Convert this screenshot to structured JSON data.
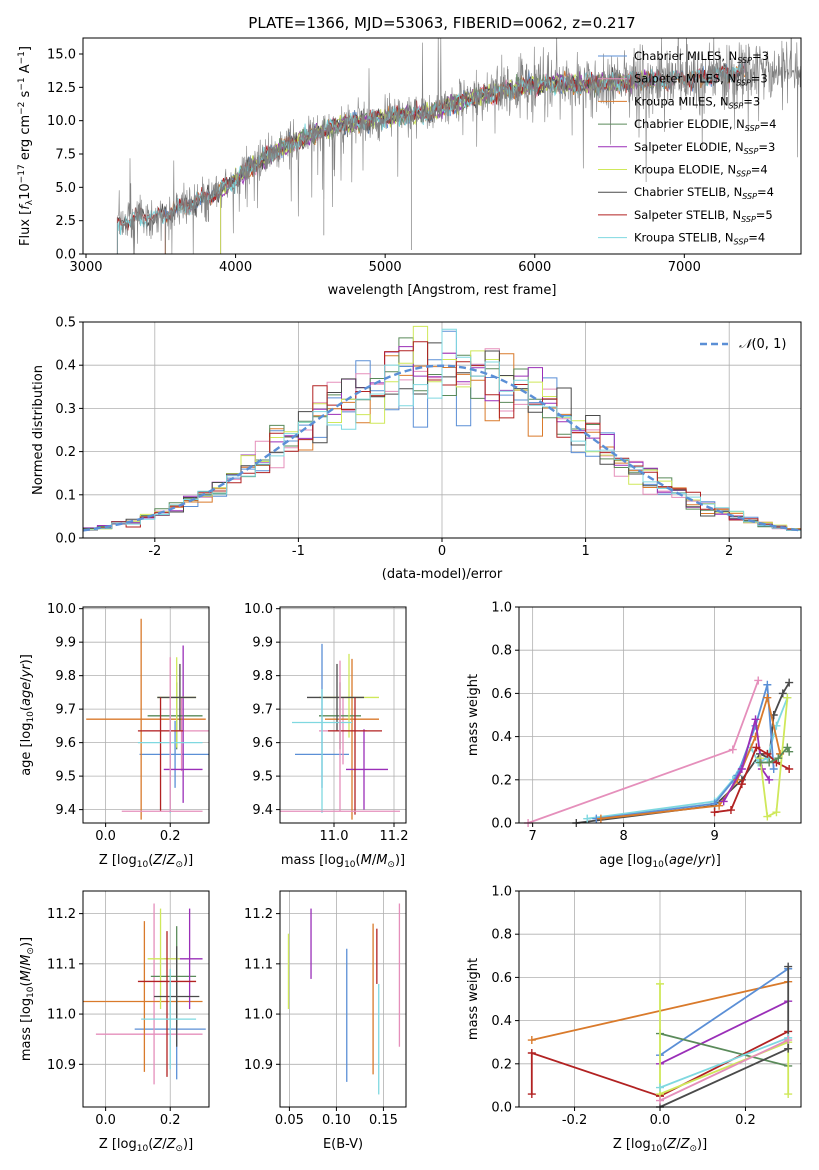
{
  "page_title": "PLATE=1366, MJD=53063, FIBERID=0062, z=0.217",
  "colors": {
    "grid": "#b0b0b0",
    "chabrier_miles": "#5b8fd6",
    "salpeter_miles": "#e58fbb",
    "kroupa_miles": "#d97a2b",
    "chabrier_elodie": "#5a8a5a",
    "salpeter_elodie": "#9a2fb8",
    "kroupa_elodie": "#cfe85a",
    "chabrier_stelib": "#4a4a4a",
    "salpeter_stelib": "#b22222",
    "kroupa_stelib": "#7fd8e0",
    "normal": "#5b8fd6",
    "spectrum_grey": "#808080"
  },
  "chart_data": [
    {
      "id": "spectrum",
      "type": "line",
      "title": "PLATE=1366, MJD=53063, FIBERID=0062, z=0.217",
      "xlabel": "wavelength [Angstrom, rest frame]",
      "ylabel": "Flux [f_λ 10^-17 erg cm^-2 s^-1 A^-1]",
      "xlim": [
        2980,
        7780
      ],
      "ylim": [
        0,
        16.2
      ],
      "xticks": [
        3000,
        4000,
        5000,
        6000,
        7000
      ],
      "yticks": [
        0.0,
        2.5,
        5.0,
        7.5,
        10.0,
        12.5,
        15.0
      ],
      "continuum": {
        "x": [
          3210,
          3300,
          3500,
          3700,
          3900,
          4100,
          4300,
          4500,
          4700,
          4900,
          5100,
          5300,
          5500,
          5700,
          5900,
          6100,
          6300,
          6500,
          6700,
          6900,
          7100,
          7300,
          7400
        ],
        "y": [
          2.3,
          2.6,
          2.9,
          3.8,
          4.7,
          6.5,
          7.9,
          8.9,
          9.7,
          10.0,
          10.4,
          10.6,
          11.4,
          12.0,
          12.5,
          12.8,
          12.7,
          12.9,
          13.0,
          13.1,
          13.2,
          13.6,
          13.6
        ]
      },
      "series_ranges": [
        {
          "name": "Chabrier MILES, N_SSP=3",
          "x0": 3530,
          "x1": 7410
        },
        {
          "name": "Salpeter MILES, N_SSP=3",
          "x0": 3530,
          "x1": 7410
        },
        {
          "name": "Kroupa MILES, N_SSP=3",
          "x0": 3530,
          "x1": 7410
        },
        {
          "name": "Chabrier ELODIE, N_SSP=4",
          "x0": 3900,
          "x1": 6800
        },
        {
          "name": "Salpeter ELODIE, N_SSP=3",
          "x0": 3900,
          "x1": 6800
        },
        {
          "name": "Kroupa ELODIE, N_SSP=4",
          "x0": 3900,
          "x1": 6800
        },
        {
          "name": "Chabrier STELIB, N_SSP=4",
          "x0": 3210,
          "x1": 7400
        },
        {
          "name": "Salpeter STELIB, N_SSP=5",
          "x0": 3210,
          "x1": 7400
        },
        {
          "name": "Kroupa STELIB, N_SSP=4",
          "x0": 3210,
          "x1": 7400
        }
      ],
      "legend_position": "upper right"
    },
    {
      "id": "residuals",
      "type": "histogram",
      "xlabel": "(data-model)/error",
      "ylabel": "Normed distribution",
      "xlim": [
        -2.5,
        2.5
      ],
      "ylim": [
        0.0,
        0.5
      ],
      "xticks": [
        -2,
        -1,
        0,
        1,
        2
      ],
      "yticks": [
        0.0,
        0.1,
        0.2,
        0.3,
        0.4,
        0.5
      ],
      "bin_width": 0.1,
      "legend": "N(0, 1)",
      "legend_position": "upper right"
    },
    {
      "id": "age_vs_Z",
      "type": "errorbar",
      "xlabel": "Z [log10(Z/Z☉)]",
      "ylabel": "age  [log10(age/yr)]",
      "xlim": [
        -0.07,
        0.32
      ],
      "ylim": [
        9.36,
        10.005
      ],
      "xticks": [
        0.0,
        0.2
      ],
      "yticks": [
        9.4,
        9.5,
        9.6,
        9.7,
        9.8,
        9.9,
        10.0
      ],
      "points": [
        {
          "series": "chabrier_miles",
          "x": 0.215,
          "y": 9.565,
          "xerr": [
            0.11,
            0.11
          ],
          "yerr": [
            0.1,
            0.1
          ]
        },
        {
          "series": "salpeter_miles",
          "x": 0.235,
          "y": 9.635,
          "xerr": [
            0.12,
            0.12
          ],
          "yerr": [
            0.12,
            0.1
          ]
        },
        {
          "series": "kroupa_miles",
          "x": 0.11,
          "y": 9.67,
          "xerr": [
            0.17,
            0.2
          ],
          "yerr": [
            0.3,
            0.3
          ]
        },
        {
          "series": "chabrier_elodie",
          "x": 0.22,
          "y": 9.68,
          "xerr": [
            0.09,
            0.08
          ],
          "yerr": [
            0.1,
            0.1
          ]
        },
        {
          "series": "salpeter_elodie",
          "x": 0.24,
          "y": 9.52,
          "xerr": [
            0.06,
            0.06
          ],
          "yerr": [
            0.1,
            0.37
          ]
        },
        {
          "series": "kroupa_elodie",
          "x": 0.22,
          "y": 9.735,
          "xerr": [
            0.06,
            0.06
          ],
          "yerr": [
            0.15,
            0.12
          ]
        },
        {
          "series": "chabrier_stelib",
          "x": 0.23,
          "y": 9.735,
          "xerr": [
            0.07,
            0.05
          ],
          "yerr": [
            0.1,
            0.1
          ]
        },
        {
          "series": "salpeter_stelib",
          "x": 0.17,
          "y": 9.635,
          "xerr": [
            0.07,
            0.07
          ],
          "yerr": [
            0.24,
            0.1
          ]
        },
        {
          "series": "kroupa_stelib",
          "x": 0.2,
          "y": 9.6,
          "xerr": [
            0.1,
            0.1
          ],
          "yerr": [
            0.21,
            0.1
          ]
        },
        {
          "series": "salpeter_miles",
          "x": 0.2,
          "y": 9.395,
          "xerr": [
            0.15,
            0.1
          ],
          "yerr": [
            0.0,
            0.46
          ]
        }
      ]
    },
    {
      "id": "age_vs_mass",
      "type": "errorbar",
      "xlabel": "mass [log10(M/M☉)]",
      "ylabel": "",
      "xlim": [
        10.82,
        11.24
      ],
      "ylim": [
        9.36,
        10.005
      ],
      "xticks": [
        11.0,
        11.2
      ],
      "xtick_labels": [
        "11.0",
        "11.2"
      ],
      "extra_xtick": "10.8",
      "yticks": [
        9.4,
        9.5,
        9.6,
        9.7,
        9.8,
        9.9,
        10.0
      ],
      "points": [
        {
          "series": "chabrier_miles",
          "x": 10.96,
          "y": 9.565,
          "xerr": [
            0.09,
            0.09
          ],
          "yerr": [
            0.1,
            0.33
          ]
        },
        {
          "series": "salpeter_miles",
          "x": 11.03,
          "y": 9.635,
          "xerr": [
            0.08,
            0.08
          ],
          "yerr": [
            0.1,
            0.1
          ]
        },
        {
          "series": "kroupa_miles",
          "x": 11.06,
          "y": 9.67,
          "xerr": [
            0.09,
            0.09
          ],
          "yerr": [
            0.3,
            0.18
          ]
        },
        {
          "series": "chabrier_elodie",
          "x": 11.02,
          "y": 9.68,
          "xerr": [
            0.07,
            0.07
          ],
          "yerr": [
            0.1,
            0.1
          ]
        },
        {
          "series": "salpeter_elodie",
          "x": 11.1,
          "y": 9.52,
          "xerr": [
            0.06,
            0.08
          ],
          "yerr": [
            0.12,
            0.12
          ]
        },
        {
          "series": "kroupa_elodie",
          "x": 11.05,
          "y": 9.735,
          "xerr": [
            0.1,
            0.1
          ],
          "yerr": [
            0.12,
            0.13
          ]
        },
        {
          "series": "chabrier_stelib",
          "x": 11.01,
          "y": 9.735,
          "xerr": [
            0.1,
            0.09
          ],
          "yerr": [
            0.1,
            0.1
          ]
        },
        {
          "series": "salpeter_stelib",
          "x": 11.07,
          "y": 9.635,
          "xerr": [
            0.09,
            0.09
          ],
          "yerr": [
            0.25,
            0.1
          ]
        },
        {
          "series": "kroupa_stelib",
          "x": 10.96,
          "y": 9.66,
          "xerr": [
            0.1,
            0.1
          ],
          "yerr": [
            0.27,
            0.1
          ]
        },
        {
          "series": "salpeter_miles",
          "x": 11.02,
          "y": 9.395,
          "xerr": [
            0.2,
            0.2
          ],
          "yerr": [
            0.0,
            0.45
          ]
        }
      ]
    },
    {
      "id": "mass_weight_vs_age",
      "type": "line",
      "xlabel": "age  [log10(age/yr)]",
      "ylabel": "mass weight",
      "xlim": [
        6.85,
        9.95
      ],
      "ylim": [
        0.0,
        1.0
      ],
      "xticks": [
        7,
        8,
        9
      ],
      "yticks": [
        0.0,
        0.2,
        0.4,
        0.6,
        0.8,
        1.0
      ],
      "series": [
        {
          "name": "salpeter_miles",
          "x": [
            6.95,
            9.2,
            9.48
          ],
          "y": [
            0.0,
            0.34,
            0.66
          ]
        },
        {
          "name": "chabrier_stelib",
          "x": [
            7.48,
            9.0,
            9.3,
            9.5,
            9.6,
            9.65,
            9.75,
            9.82
          ],
          "y": [
            0.0,
            0.08,
            0.2,
            0.32,
            0.3,
            0.5,
            0.6,
            0.65
          ]
        },
        {
          "name": "kroupa_stelib",
          "x": [
            7.6,
            9.0,
            9.2,
            9.4,
            9.48,
            9.58,
            9.68,
            9.8
          ],
          "y": [
            0.02,
            0.1,
            0.2,
            0.35,
            0.28,
            0.3,
            0.45,
            0.58
          ]
        },
        {
          "name": "chabrier_miles",
          "x": [
            7.7,
            9.0,
            9.25,
            9.45,
            9.58,
            9.65
          ],
          "y": [
            0.02,
            0.09,
            0.22,
            0.45,
            0.64,
            0.25
          ]
        },
        {
          "name": "kroupa_miles",
          "x": [
            7.75,
            9.05,
            9.25,
            9.45,
            9.58,
            9.72
          ],
          "y": [
            0.02,
            0.08,
            0.2,
            0.4,
            0.58,
            0.32
          ]
        },
        {
          "name": "salpeter_elodie",
          "x": [
            9.1,
            9.3,
            9.45,
            9.52,
            9.6
          ],
          "y": [
            0.1,
            0.25,
            0.48,
            0.25,
            0.2
          ]
        },
        {
          "name": "salpeter_stelib",
          "x": [
            9.0,
            9.18,
            9.3,
            9.46,
            9.58,
            9.68,
            9.82
          ],
          "y": [
            0.05,
            0.06,
            0.18,
            0.35,
            0.32,
            0.28,
            0.25
          ]
        },
        {
          "name": "kroupa_elodie",
          "x": [
            9.5,
            9.58,
            9.68,
            9.8
          ],
          "y": [
            0.3,
            0.03,
            0.05,
            0.58
          ]
        },
        {
          "name": "chabrier_elodie",
          "x": [
            9.5,
            9.6,
            9.7,
            9.8,
            9.82
          ],
          "y": [
            0.28,
            0.28,
            0.3,
            0.35,
            0.33
          ]
        }
      ]
    },
    {
      "id": "mass_vs_Z",
      "type": "errorbar",
      "xlabel": "Z [log10(Z/Z☉)]",
      "ylabel": "mass [log10(M/M☉)]",
      "xlim": [
        -0.07,
        0.32
      ],
      "ylim": [
        10.815,
        11.245
      ],
      "xticks": [
        0.0,
        0.2
      ],
      "yticks": [
        10.9,
        11.0,
        11.1,
        11.2
      ],
      "points": [
        {
          "series": "chabrier_miles",
          "x": 0.22,
          "y": 10.97,
          "xerr": [
            0.13,
            0.09
          ],
          "yerr": [
            0.1,
            0.1
          ]
        },
        {
          "series": "salpeter_miles",
          "x": 0.15,
          "y": 10.96,
          "xerr": [
            0.18,
            0.15
          ],
          "yerr": [
            0.1,
            0.26
          ]
        },
        {
          "series": "kroupa_miles",
          "x": 0.12,
          "y": 11.025,
          "xerr": [
            0.19,
            0.18
          ],
          "yerr": [
            0.14,
            0.16
          ]
        },
        {
          "series": "chabrier_elodie",
          "x": 0.22,
          "y": 11.075,
          "xerr": [
            0.08,
            0.06
          ],
          "yerr": [
            0.1,
            0.1
          ]
        },
        {
          "series": "salpeter_elodie",
          "x": 0.26,
          "y": 11.11,
          "xerr": [
            0.08,
            0.04
          ],
          "yerr": [
            0.1,
            0.1
          ]
        },
        {
          "series": "kroupa_elodie",
          "x": 0.17,
          "y": 11.11,
          "xerr": [
            0.04,
            0.06
          ],
          "yerr": [
            0.1,
            0.1
          ]
        },
        {
          "series": "chabrier_stelib",
          "x": 0.22,
          "y": 11.035,
          "xerr": [
            0.07,
            0.07
          ],
          "yerr": [
            0.1,
            0.1
          ]
        },
        {
          "series": "salpeter_stelib",
          "x": 0.19,
          "y": 11.065,
          "xerr": [
            0.09,
            0.09
          ],
          "yerr": [
            0.19,
            0.1
          ]
        },
        {
          "series": "kroupa_stelib",
          "x": 0.2,
          "y": 10.99,
          "xerr": [
            0.09,
            0.08
          ],
          "yerr": [
            0.1,
            0.1
          ]
        }
      ]
    },
    {
      "id": "mass_vs_ebv",
      "type": "errorbar",
      "xlabel": "E(B-V)",
      "ylabel": "",
      "xlim": [
        0.04,
        0.174
      ],
      "ylim": [
        10.815,
        11.245
      ],
      "xticks": [
        0.05,
        0.1,
        0.15
      ],
      "yticks": [
        10.9,
        11.0,
        11.1,
        11.2
      ],
      "vlines": [
        {
          "series": "kroupa_elodie",
          "x": 0.049,
          "y0": 11.01,
          "y1": 11.16
        },
        {
          "series": "salpeter_elodie",
          "x": 0.073,
          "y0": 11.07,
          "y1": 11.21
        },
        {
          "series": "chabrier_miles",
          "x": 0.111,
          "y0": 10.865,
          "y1": 11.13
        },
        {
          "series": "kroupa_miles",
          "x": 0.139,
          "y0": 10.88,
          "y1": 11.18
        },
        {
          "series": "salpeter_stelib",
          "x": 0.143,
          "y0": 11.06,
          "y1": 11.17
        },
        {
          "series": "kroupa_stelib",
          "x": 0.145,
          "y0": 10.84,
          "y1": 11.06
        },
        {
          "series": "salpeter_miles",
          "x": 0.167,
          "y0": 10.935,
          "y1": 11.22
        }
      ]
    },
    {
      "id": "mass_weight_vs_Z",
      "type": "line",
      "xlabel": "Z [log10(Z/Z☉)]",
      "ylabel": "mass weight",
      "xlim": [
        -0.33,
        0.33
      ],
      "ylim": [
        0.0,
        1.0
      ],
      "xticks": [
        -0.2,
        0.0,
        0.2
      ],
      "yticks": [
        0.0,
        0.2,
        0.4,
        0.6,
        0.8,
        1.0
      ],
      "series": [
        {
          "name": "kroupa_miles",
          "x": [
            -0.3,
            0.3
          ],
          "y": [
            0.31,
            0.58
          ]
        },
        {
          "name": "salpeter_stelib",
          "x": [
            -0.3,
            -0.3,
            0.0,
            0.3
          ],
          "y": [
            0.06,
            0.25,
            0.05,
            0.35
          ]
        },
        {
          "name": "chabrier_miles",
          "x": [
            0.0,
            0.3
          ],
          "y": [
            0.24,
            0.64
          ]
        },
        {
          "name": "salpeter_elodie",
          "x": [
            0.0,
            0.3
          ],
          "y": [
            0.2,
            0.49
          ]
        },
        {
          "name": "chabrier_elodie",
          "x": [
            0.0,
            0.3
          ],
          "y": [
            0.34,
            0.19
          ]
        },
        {
          "name": "kroupa_elodie",
          "x": [
            0.0,
            0.0,
            0.3,
            0.3
          ],
          "y": [
            0.57,
            0.06,
            0.3,
            0.06
          ]
        },
        {
          "name": "chabrier_stelib",
          "x": [
            0.0,
            0.3,
            0.3
          ],
          "y": [
            0.0,
            0.27,
            0.65
          ]
        },
        {
          "name": "kroupa_stelib",
          "x": [
            0.0,
            0.3
          ],
          "y": [
            0.09,
            0.32
          ]
        },
        {
          "name": "salpeter_miles",
          "x": [
            0.0,
            0.3
          ],
          "y": [
            0.03,
            0.31
          ]
        }
      ]
    }
  ]
}
